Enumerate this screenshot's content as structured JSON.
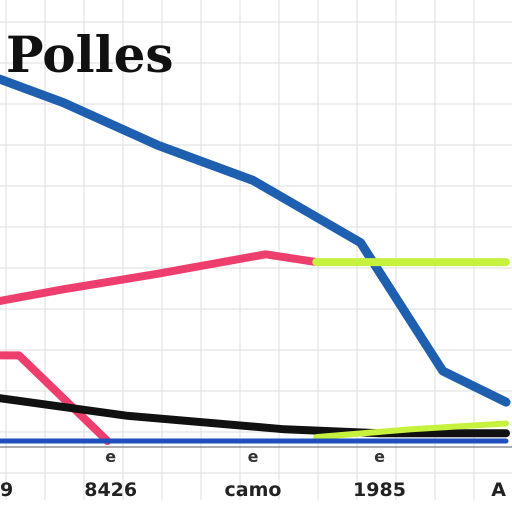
{
  "chart_data": {
    "type": "line",
    "title": "Polles",
    "xlabel": "",
    "ylabel": "",
    "x": [
      0,
      1,
      2,
      3,
      4,
      5,
      6,
      7,
      8
    ],
    "xlim": [
      0,
      8
    ],
    "ylim": [
      0,
      10
    ],
    "x_tick_labels": [
      {
        "x": 0,
        "label": "9"
      },
      {
        "x": 1.75,
        "label": "8426"
      },
      {
        "x": 4,
        "label": "camo"
      },
      {
        "x": 6,
        "label": "1985"
      },
      {
        "x": 8,
        "label": "A"
      }
    ],
    "x_mid_marks": [
      {
        "x": 1.75,
        "label": "e"
      },
      {
        "x": 4,
        "label": "e"
      },
      {
        "x": 6,
        "label": "e"
      }
    ],
    "grid": true,
    "legend": "none",
    "series": [
      {
        "color": "#1f5fb0",
        "width": 9,
        "points": [
          [
            0,
            9.3
          ],
          [
            1,
            8.7
          ],
          [
            2.5,
            7.6
          ],
          [
            4,
            6.7
          ],
          [
            5.7,
            5.1
          ],
          [
            7,
            1.8
          ],
          [
            8,
            1.0
          ]
        ]
      },
      {
        "color": "#ee3e6e",
        "width": 8,
        "points": [
          [
            0,
            3.6
          ],
          [
            1,
            3.9
          ],
          [
            2.5,
            4.3
          ],
          [
            4.2,
            4.8
          ],
          [
            5,
            4.6
          ]
        ]
      },
      {
        "color": "#c6f23e",
        "width": 8,
        "points": [
          [
            5,
            4.6
          ],
          [
            8,
            4.6
          ]
        ]
      },
      {
        "color": "#ee3e6e",
        "width": 8,
        "points": [
          [
            0,
            2.2
          ],
          [
            0.3,
            2.2
          ],
          [
            1.7,
            0.0
          ]
        ]
      },
      {
        "color": "#111111",
        "width": 8,
        "points": [
          [
            0,
            1.1
          ],
          [
            2,
            0.65
          ],
          [
            4.5,
            0.3
          ],
          [
            6,
            0.2
          ],
          [
            8,
            0.2
          ]
        ]
      },
      {
        "color": "#c6f23e",
        "width": 6,
        "points": [
          [
            5,
            0.1
          ],
          [
            6.5,
            0.3
          ],
          [
            8,
            0.45
          ]
        ]
      },
      {
        "color": "#1f4fbd",
        "width": 5,
        "points": [
          [
            0,
            0.0
          ],
          [
            8,
            0.0
          ]
        ]
      }
    ]
  }
}
